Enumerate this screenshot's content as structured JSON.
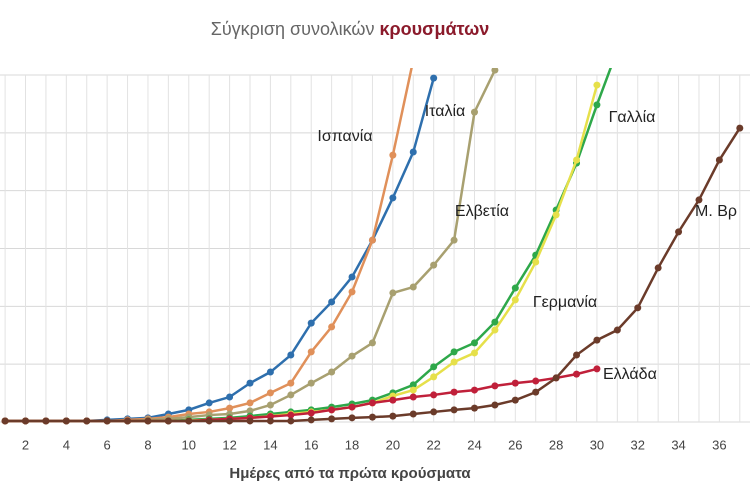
{
  "chart_data": {
    "type": "line",
    "title": "Σύγκριση συνολικών",
    "title_highlight": "κρουσμάτων",
    "x_label": "Ημέρες από τα πρώτα κρούσματα",
    "x": [
      1,
      2,
      3,
      4,
      5,
      6,
      7,
      8,
      9,
      10,
      11,
      12,
      13,
      14,
      15,
      16,
      17,
      18,
      19,
      20,
      21,
      22,
      23,
      24,
      25,
      26,
      27,
      28,
      29,
      30,
      31,
      32,
      33,
      34,
      35,
      36,
      37
    ],
    "xlim": [
      0.75,
      37.5
    ],
    "xticks": [
      2,
      4,
      6,
      8,
      10,
      12,
      14,
      16,
      18,
      20,
      22,
      24,
      26,
      28,
      30,
      32,
      34,
      36
    ],
    "ylim": [
      0,
      100
    ],
    "grid": true,
    "series": [
      {
        "name": "Ιταλία",
        "color": "#2e6fad",
        "values": [
          0.3,
          0.3,
          0.3,
          0.3,
          0.3,
          0.6,
          0.9,
          1.2,
          2.3,
          3.5,
          5.5,
          7.2,
          11.2,
          14.4,
          19.3,
          28.5,
          34.6,
          41.8,
          52.4,
          64.6,
          77.8,
          99.1,
          null,
          null,
          null,
          null,
          null,
          null,
          null,
          null,
          null,
          null,
          null,
          null,
          null,
          null,
          null
        ]
      },
      {
        "name": "Ισπανία",
        "color": "#e0905a",
        "values": [
          0.3,
          0.3,
          0.3,
          0.3,
          0.3,
          0.3,
          0.6,
          0.9,
          1.4,
          2.3,
          2.9,
          4.0,
          5.5,
          8.4,
          11.2,
          20.2,
          27.4,
          37.5,
          52.4,
          76.9,
          104.3,
          null,
          null,
          null,
          null,
          null,
          null,
          null,
          null,
          null,
          null,
          null,
          null,
          null,
          null,
          null,
          null
        ]
      },
      {
        "name": "Ελβετία",
        "color": "#a8a070",
        "values": [
          0.3,
          0.3,
          0.3,
          0.3,
          0.3,
          0.3,
          0.3,
          0.6,
          0.9,
          1.4,
          2.0,
          2.3,
          3.2,
          4.9,
          7.8,
          11.2,
          14.4,
          19.0,
          22.8,
          37.2,
          38.9,
          45.2,
          52.4,
          89.3,
          101.4,
          null,
          null,
          null,
          null,
          null,
          null,
          null,
          null,
          null,
          null,
          null,
          null
        ]
      },
      {
        "name": "Γαλλία",
        "color": "#2ea84a",
        "values": [
          0.3,
          0.3,
          0.3,
          0.3,
          0.3,
          0.3,
          0.3,
          0.3,
          0.3,
          0.6,
          0.9,
          1.2,
          1.7,
          2.3,
          2.9,
          3.5,
          4.3,
          5.2,
          6.3,
          8.4,
          10.7,
          15.9,
          20.2,
          22.8,
          28.8,
          38.6,
          48.1,
          61.1,
          74.6,
          91.4,
          107.2,
          null,
          null,
          null,
          null,
          null,
          null
        ]
      },
      {
        "name": "Γερμανία",
        "color": "#e6e04a",
        "values": [
          0.3,
          0.3,
          0.3,
          0.3,
          0.3,
          0.3,
          0.3,
          0.3,
          0.3,
          0.4,
          0.6,
          0.9,
          1.2,
          1.7,
          2.3,
          2.9,
          3.5,
          4.3,
          5.5,
          7.5,
          9.2,
          13.0,
          17.3,
          19.9,
          26.5,
          35.2,
          46.1,
          59.7,
          75.5,
          97.1,
          null,
          null,
          null,
          null,
          null,
          null,
          null
        ]
      },
      {
        "name": "Ελλάδα",
        "color": "#c0203a",
        "values": [
          0.3,
          0.3,
          0.3,
          0.3,
          0.3,
          0.3,
          0.3,
          0.3,
          0.3,
          0.3,
          0.6,
          0.9,
          1.2,
          1.6,
          2.0,
          2.6,
          3.5,
          4.3,
          5.5,
          6.3,
          7.2,
          7.8,
          8.6,
          9.2,
          10.4,
          11.2,
          11.8,
          12.7,
          13.8,
          15.3,
          null,
          null,
          null,
          null,
          null,
          null,
          null
        ]
      },
      {
        "name": "Μ. Βρ",
        "color": "#6b3b2a",
        "values": [
          0.3,
          0.3,
          0.3,
          0.3,
          0.3,
          0.3,
          0.3,
          0.3,
          0.3,
          0.3,
          0.3,
          0.3,
          0.3,
          0.3,
          0.3,
          0.6,
          0.9,
          1.2,
          1.4,
          1.7,
          2.3,
          2.9,
          3.5,
          4.0,
          4.9,
          6.3,
          8.6,
          12.7,
          19.3,
          23.6,
          26.5,
          32.9,
          44.4,
          54.8,
          64.0,
          75.5,
          84.7
        ]
      }
    ]
  }
}
